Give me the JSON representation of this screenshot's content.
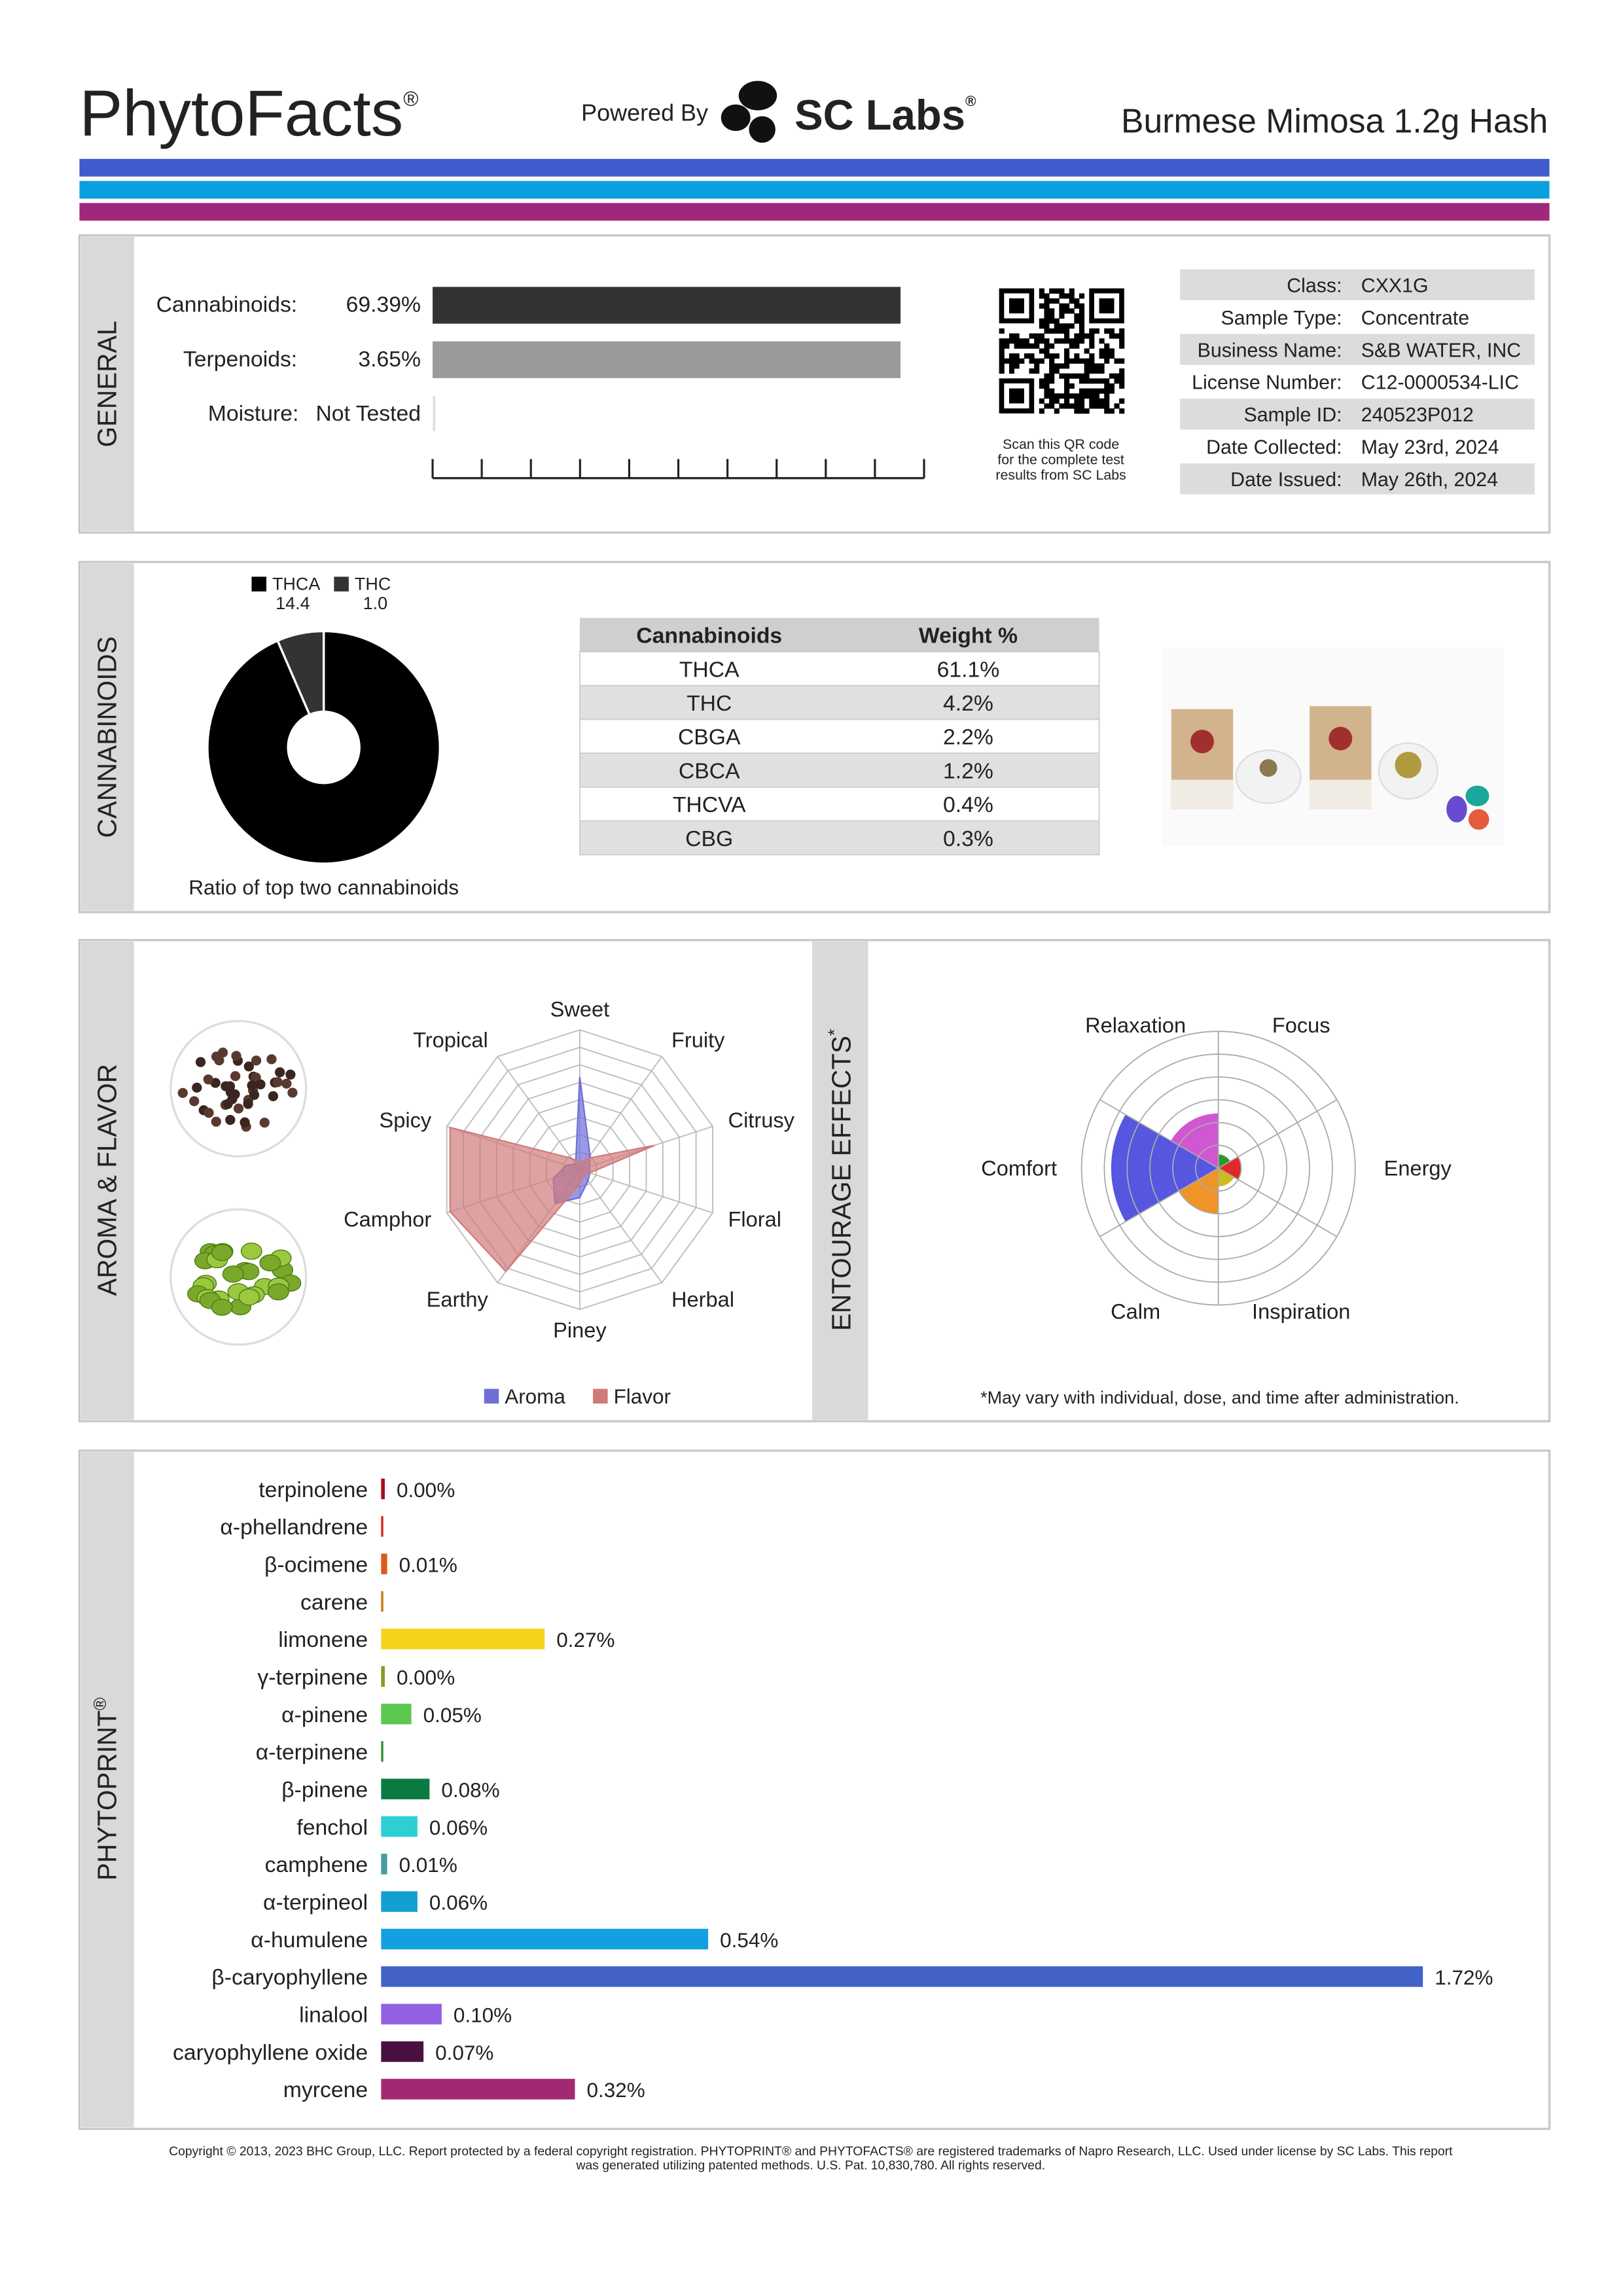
{
  "header": {
    "brand": "PhytoFacts",
    "brand_mark": "®",
    "powered": "Powered By",
    "lab": "SC Labs",
    "lab_mark": "®",
    "product": "Burmese Mimosa 1.2g Hash"
  },
  "general": {
    "section": "GENERAL",
    "rows": [
      {
        "label": "Cannabinoids:",
        "value": 69.39,
        "value_label": "69.39%"
      },
      {
        "label": "Terpenoids:",
        "value": 3.65,
        "value_label": "3.65%"
      },
      {
        "label": "Moisture:",
        "value_label": "Not Tested"
      }
    ],
    "qr_note": [
      "Scan this QR code",
      "for the complete test",
      "results from SC Labs"
    ],
    "info": [
      {
        "label": "Class:",
        "value": "CXX1G"
      },
      {
        "label": "Sample Type:",
        "value": "Concentrate"
      },
      {
        "label": "Business Name:",
        "value": "S&B WATER, INC"
      },
      {
        "label": "License Number:",
        "value": "C12-0000534-LIC"
      },
      {
        "label": "Sample ID:",
        "value": "240523P012"
      },
      {
        "label": "Date Collected:",
        "value": "May 23rd, 2024"
      },
      {
        "label": "Date Issued:",
        "value": "May 26th, 2024"
      }
    ]
  },
  "cannabinoids": {
    "section": "CANNABINOIDS",
    "ratio": {
      "type": "pie",
      "categories": [
        "THCA",
        "THC"
      ],
      "values": [
        14.4,
        1.0
      ],
      "value_labels": [
        "14.4",
        "1.0"
      ],
      "colors": [
        "#000000",
        "#333333"
      ],
      "caption": "Ratio of top two cannabinoids"
    },
    "table": {
      "header": [
        "Cannabinoids",
        "Weight %"
      ],
      "rows": [
        [
          "THCA",
          "61.1%"
        ],
        [
          "THC",
          "4.2%"
        ],
        [
          "CBGA",
          "2.2%"
        ],
        [
          "CBCA",
          "1.2%"
        ],
        [
          "THCVA",
          "0.4%"
        ],
        [
          "CBG",
          "0.3%"
        ]
      ]
    }
  },
  "aroma": {
    "section": "AROMA & FLAVOR",
    "radar": {
      "type": "radar",
      "axes": [
        "Sweet",
        "Fruity",
        "Citrusy",
        "Floral",
        "Herbal",
        "Piney",
        "Earthy",
        "Camphor",
        "Spicy",
        "Tropical"
      ],
      "rlim": [
        0,
        8
      ],
      "series": [
        {
          "name": "Aroma",
          "color": "#6f6fd8",
          "values": [
            5.3,
            1,
            0.6,
            0.6,
            0.8,
            1.6,
            2.4,
            1.6,
            0.8,
            0.4
          ]
        },
        {
          "name": "Flavor",
          "color": "#d07a7a",
          "values": [
            0.4,
            0.8,
            4.5,
            0.6,
            0.4,
            0.8,
            7.2,
            7.8,
            7.8,
            0.8
          ]
        }
      ]
    }
  },
  "entourage": {
    "section": "ENTOURAGE EFFECTS",
    "section_mark": "*",
    "chart": {
      "type": "polar",
      "categories": [
        "Relaxation",
        "Focus",
        "Energy",
        "Inspiration",
        "Calm",
        "Comfort"
      ],
      "values": [
        2.4,
        0.6,
        1,
        0.8,
        2,
        4.7
      ],
      "colors": [
        "#cc44cc",
        "#1a8a1a",
        "#dd1111",
        "#c8b400",
        "#ee8811",
        "#4444dd"
      ],
      "rlim": [
        0,
        6
      ]
    },
    "note": "*May vary with individual, dose, and time after administration."
  },
  "phytoprint": {
    "section": "PHYTOPRINT",
    "section_mark": "®",
    "terpenes": [
      {
        "name": "terpinolene",
        "color": "#a30f1a",
        "value": 0,
        "label": "0.00%"
      },
      {
        "name": "α-phellandrene",
        "color": "#d0281e"
      },
      {
        "name": "β-ocimene",
        "color": "#dd5a18",
        "value": 0.01,
        "label": "0.01%"
      },
      {
        "name": "carene",
        "color": "#c47a10"
      },
      {
        "name": "limonene",
        "color": "#f5d21c",
        "value": 0.27,
        "label": "0.27%"
      },
      {
        "name": "γ-terpinene",
        "color": "#8a9a20",
        "value": 0,
        "label": "0.00%"
      },
      {
        "name": "α-pinene",
        "color": "#5cc850",
        "value": 0.05,
        "label": "0.05%"
      },
      {
        "name": "α-terpinene",
        "color": "#2f8f2f"
      },
      {
        "name": "β-pinene",
        "color": "#0b7a42",
        "value": 0.08,
        "label": "0.08%"
      },
      {
        "name": "fenchol",
        "color": "#2ccfd2",
        "value": 0.06,
        "label": "0.06%"
      },
      {
        "name": "camphene",
        "color": "#4a9aa6",
        "value": 0.01,
        "label": "0.01%"
      },
      {
        "name": "α-terpineol",
        "color": "#12a0d2",
        "value": 0.06,
        "label": "0.06%"
      },
      {
        "name": "α-humulene",
        "color": "#12a0e2",
        "value": 0.54,
        "label": "0.54%"
      },
      {
        "name": "β-caryophyllene",
        "color": "#4262c8",
        "value": 1.72,
        "label": "1.72%"
      },
      {
        "name": "linalool",
        "color": "#9460e4",
        "value": 0.1,
        "label": "0.10%"
      },
      {
        "name": "caryophyllene oxide",
        "color": "#4a1040",
        "value": 0.07,
        "label": "0.07%"
      },
      {
        "name": "myrcene",
        "color": "#a32872",
        "value": 0.32,
        "label": "0.32%"
      }
    ]
  },
  "footer": [
    "Copyright © 2013, 2023 BHC Group, LLC. Report protected by a federal copyright registration. PHYTOPRINT® and PHYTOFACTS® are registered trademarks of Napro Research, LLC. Used under license by SC Labs. This report",
    "was generated utilizing patented methods. U.S. Pat. 10,830,780. All rights reserved."
  ]
}
